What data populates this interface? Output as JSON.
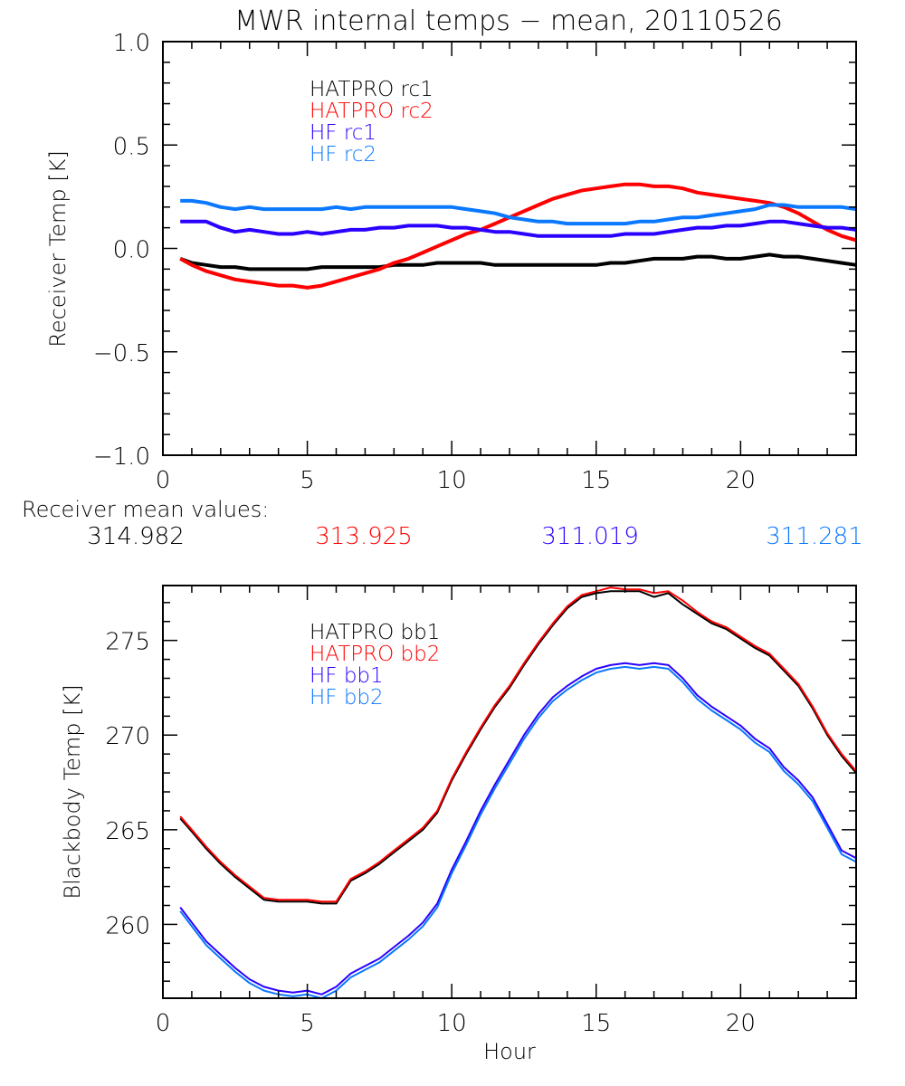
{
  "chart_data": [
    {
      "type": "line",
      "title": "MWR internal temps − mean, 20110526",
      "xlabel": "",
      "ylabel": "Receiver Temp [K]",
      "xlim": [
        0,
        24
      ],
      "ylim": [
        -1.0,
        1.0
      ],
      "xticks": [
        "0",
        "5",
        "10",
        "15",
        "20"
      ],
      "xtick_values": [
        0,
        5,
        10,
        15,
        20
      ],
      "x_minor_step": 1,
      "yticks": [
        "−1.0",
        "−0.5",
        "0.0",
        "0.5",
        "1.0"
      ],
      "ytick_values": [
        -1.0,
        -0.5,
        0.0,
        0.5,
        1.0
      ],
      "y_minor_step": 0.1,
      "legend_placement": "top-left",
      "x": [
        0.6,
        1,
        1.5,
        2,
        2.5,
        3,
        3.5,
        4,
        4.5,
        5,
        5.5,
        6,
        6.5,
        7,
        7.5,
        8,
        8.5,
        9,
        9.5,
        10,
        10.5,
        11,
        11.5,
        12,
        12.5,
        13,
        13.5,
        14,
        14.5,
        15,
        15.5,
        16,
        16.5,
        17,
        17.5,
        18,
        18.5,
        19,
        19.5,
        20,
        20.5,
        21,
        21.5,
        22,
        22.5,
        23,
        23.5,
        24
      ],
      "series": [
        {
          "name": "HATPRO rc1",
          "color": "#000000",
          "values": [
            -0.05,
            -0.07,
            -0.08,
            -0.09,
            -0.09,
            -0.1,
            -0.1,
            -0.1,
            -0.1,
            -0.1,
            -0.09,
            -0.09,
            -0.09,
            -0.09,
            -0.09,
            -0.08,
            -0.08,
            -0.08,
            -0.07,
            -0.07,
            -0.07,
            -0.07,
            -0.08,
            -0.08,
            -0.08,
            -0.08,
            -0.08,
            -0.08,
            -0.08,
            -0.08,
            -0.07,
            -0.07,
            -0.06,
            -0.05,
            -0.05,
            -0.05,
            -0.04,
            -0.04,
            -0.05,
            -0.05,
            -0.04,
            -0.03,
            -0.04,
            -0.04,
            -0.05,
            -0.06,
            -0.07,
            -0.08
          ]
        },
        {
          "name": "HATPRO rc2",
          "color": "#ff0000",
          "values": [
            -0.05,
            -0.08,
            -0.11,
            -0.13,
            -0.15,
            -0.16,
            -0.17,
            -0.18,
            -0.18,
            -0.19,
            -0.18,
            -0.16,
            -0.14,
            -0.12,
            -0.1,
            -0.07,
            -0.05,
            -0.02,
            0.01,
            0.04,
            0.07,
            0.09,
            0.12,
            0.15,
            0.18,
            0.21,
            0.24,
            0.26,
            0.28,
            0.29,
            0.3,
            0.31,
            0.31,
            0.3,
            0.3,
            0.29,
            0.27,
            0.26,
            0.25,
            0.24,
            0.23,
            0.22,
            0.2,
            0.17,
            0.13,
            0.09,
            0.06,
            0.04
          ]
        },
        {
          "name": "HF rc1",
          "color": "#2b00ff",
          "values": [
            0.13,
            0.13,
            0.13,
            0.1,
            0.08,
            0.09,
            0.08,
            0.07,
            0.07,
            0.08,
            0.07,
            0.08,
            0.09,
            0.09,
            0.1,
            0.1,
            0.11,
            0.11,
            0.11,
            0.1,
            0.1,
            0.09,
            0.08,
            0.08,
            0.07,
            0.06,
            0.06,
            0.06,
            0.06,
            0.06,
            0.06,
            0.07,
            0.07,
            0.07,
            0.08,
            0.09,
            0.1,
            0.1,
            0.11,
            0.11,
            0.12,
            0.13,
            0.13,
            0.12,
            0.11,
            0.1,
            0.1,
            0.09
          ]
        },
        {
          "name": "HF rc2",
          "color": "#0a78ff",
          "values": [
            0.23,
            0.23,
            0.22,
            0.2,
            0.19,
            0.2,
            0.19,
            0.19,
            0.19,
            0.19,
            0.19,
            0.2,
            0.19,
            0.2,
            0.2,
            0.2,
            0.2,
            0.2,
            0.2,
            0.2,
            0.19,
            0.18,
            0.17,
            0.15,
            0.14,
            0.13,
            0.13,
            0.12,
            0.12,
            0.12,
            0.12,
            0.12,
            0.13,
            0.13,
            0.14,
            0.15,
            0.15,
            0.16,
            0.17,
            0.18,
            0.19,
            0.21,
            0.21,
            0.2,
            0.2,
            0.2,
            0.2,
            0.19
          ]
        }
      ]
    },
    {
      "type": "line",
      "title": "",
      "xlabel": "Hour",
      "ylabel": "Blackbody Temp [K]",
      "xlim": [
        0,
        24
      ],
      "ylim": [
        256.1,
        277.9
      ],
      "xticks": [
        "0",
        "5",
        "10",
        "15",
        "20"
      ],
      "xtick_values": [
        0,
        5,
        10,
        15,
        20
      ],
      "x_minor_step": 1,
      "yticks": [
        "260",
        "265",
        "270",
        "275"
      ],
      "ytick_values": [
        260,
        265,
        270,
        275
      ],
      "y_minor_step": 1,
      "legend_placement": "top-left",
      "x": [
        0.6,
        1,
        1.5,
        2,
        2.5,
        3,
        3.5,
        4,
        4.5,
        5,
        5.5,
        6,
        6.5,
        7,
        7.5,
        8,
        8.5,
        9,
        9.5,
        10,
        10.5,
        11,
        11.5,
        12,
        12.5,
        13,
        13.5,
        14,
        14.5,
        15,
        15.5,
        16,
        16.5,
        17,
        17.5,
        18,
        18.5,
        19,
        19.5,
        20,
        20.5,
        21,
        21.5,
        22,
        22.5,
        23,
        23.5,
        24
      ],
      "series": [
        {
          "name": "HATPRO bb1",
          "color": "#000000",
          "values": [
            265.6,
            264.9,
            264.0,
            263.2,
            262.5,
            261.9,
            261.3,
            261.2,
            261.2,
            261.2,
            261.1,
            261.1,
            262.3,
            262.7,
            263.2,
            263.8,
            264.4,
            265.0,
            265.9,
            267.6,
            269.0,
            270.3,
            271.5,
            272.5,
            273.7,
            274.8,
            275.8,
            276.7,
            277.3,
            277.5,
            277.6,
            277.6,
            277.6,
            277.3,
            277.5,
            276.9,
            276.4,
            275.9,
            275.6,
            275.1,
            274.6,
            274.2,
            273.4,
            272.6,
            271.4,
            270.0,
            268.9,
            268.0
          ]
        },
        {
          "name": "HATPRO bb2",
          "color": "#ff0000",
          "values": [
            265.7,
            265.0,
            264.1,
            263.3,
            262.6,
            262.0,
            261.4,
            261.3,
            261.3,
            261.3,
            261.2,
            261.2,
            262.4,
            262.8,
            263.3,
            263.9,
            264.5,
            265.1,
            266.0,
            267.7,
            269.1,
            270.4,
            271.6,
            272.6,
            273.8,
            274.9,
            275.9,
            276.8,
            277.4,
            277.6,
            277.8,
            277.7,
            277.7,
            277.5,
            277.6,
            277.1,
            276.5,
            276.0,
            275.7,
            275.2,
            274.7,
            274.3,
            273.5,
            272.7,
            271.5,
            270.1,
            269.0,
            268.1
          ]
        },
        {
          "name": "HF bb1",
          "color": "#2b00ff",
          "values": [
            260.9,
            260.1,
            259.1,
            258.4,
            257.7,
            257.1,
            256.7,
            256.5,
            256.4,
            256.5,
            256.3,
            256.7,
            257.4,
            257.8,
            258.2,
            258.8,
            259.4,
            260.1,
            261.1,
            262.9,
            264.4,
            266.0,
            267.4,
            268.7,
            270.0,
            271.1,
            272.0,
            272.6,
            273.1,
            273.5,
            273.7,
            273.8,
            273.7,
            273.8,
            273.7,
            273.0,
            272.1,
            271.5,
            271.0,
            270.5,
            269.8,
            269.3,
            268.3,
            267.6,
            266.7,
            265.3,
            263.9,
            263.5
          ]
        },
        {
          "name": "HF bb2",
          "color": "#0a78ff",
          "values": [
            260.7,
            259.9,
            258.9,
            258.2,
            257.5,
            256.9,
            256.5,
            256.3,
            256.2,
            256.3,
            256.1,
            256.5,
            257.2,
            257.6,
            258.0,
            258.6,
            259.2,
            259.9,
            260.9,
            262.7,
            264.2,
            265.8,
            267.2,
            268.5,
            269.8,
            270.9,
            271.8,
            272.4,
            272.9,
            273.3,
            273.5,
            273.6,
            273.5,
            273.6,
            273.5,
            272.8,
            271.9,
            271.3,
            270.8,
            270.3,
            269.6,
            269.1,
            268.1,
            267.4,
            266.5,
            265.1,
            263.7,
            263.3
          ]
        }
      ]
    }
  ],
  "receiver_means": {
    "label": "Receiver mean values:",
    "values": [
      {
        "text": "314.982",
        "color": "#000000"
      },
      {
        "text": "313.925",
        "color": "#ff0000"
      },
      {
        "text": "311.019",
        "color": "#2b00ff"
      },
      {
        "text": "311.281",
        "color": "#0a78ff"
      }
    ]
  }
}
